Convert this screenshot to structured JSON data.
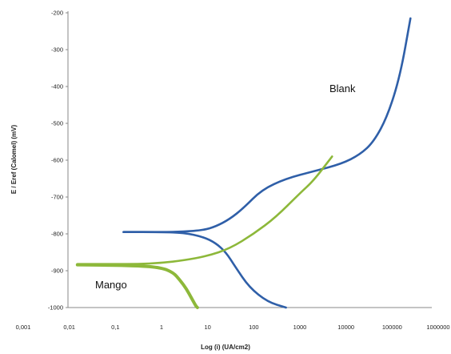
{
  "chart_data": {
    "type": "line",
    "title": "",
    "xlabel": "Log (i) (UA/cm2)",
    "ylabel": "E / Eref (Calomel) (mV)",
    "x_scale": "log",
    "xlim": [
      0.001,
      1000000
    ],
    "ylim": [
      -1000,
      -200
    ],
    "x_ticks": [
      "0,001",
      "0,01",
      "0,1",
      "1",
      "10",
      "100",
      "1000",
      "10000",
      "100000",
      "1000000"
    ],
    "y_ticks": [
      "-200",
      "-300",
      "-400",
      "-500",
      "-600",
      "-700",
      "-800",
      "-900",
      "-1000"
    ],
    "grid": false,
    "legend": "none",
    "annotations": [
      {
        "text": "Blank",
        "series": "blank"
      },
      {
        "text": "Mango",
        "series": "mango"
      }
    ],
    "series": [
      {
        "key": "blank",
        "color": "#2f5fa8",
        "branches": [
          {
            "part": "anodic",
            "x": [
              0.15,
              1,
              3,
              8,
              15,
              30,
              60,
              150,
              500,
              2000,
              8000,
              20000,
              40000,
              80000,
              150000,
              250000
            ],
            "y": [
              -795,
              -795,
              -794,
              -790,
              -780,
              -760,
              -730,
              -680,
              -650,
              -630,
              -610,
              -585,
              -550,
              -480,
              -370,
              -215
            ]
          },
          {
            "part": "cathodic",
            "x": [
              0.15,
              1,
              3,
              8,
              15,
              25,
              40,
              80,
              200,
              500
            ],
            "y": [
              -795,
              -795,
              -797,
              -808,
              -825,
              -850,
              -890,
              -945,
              -985,
              -1000
            ]
          }
        ]
      },
      {
        "key": "mango",
        "color": "#8db83a",
        "branches": [
          {
            "part": "anodic",
            "x": [
              0.015,
              0.1,
              0.3,
              1,
              3,
              10,
              30,
              100,
              300,
              1000,
              2000,
              5000
            ],
            "y": [
              -882,
              -882,
              -882,
              -879,
              -872,
              -860,
              -840,
              -800,
              -755,
              -690,
              -655,
              -590
            ]
          },
          {
            "part": "cathodic",
            "x": [
              0.015,
              0.3,
              1,
              1.8,
              2.5,
              3.5,
              4.5,
              5.5,
              6
            ],
            "y": [
              -884,
              -886,
              -892,
              -905,
              -925,
              -950,
              -975,
              -995,
              -1000
            ]
          }
        ]
      }
    ]
  }
}
